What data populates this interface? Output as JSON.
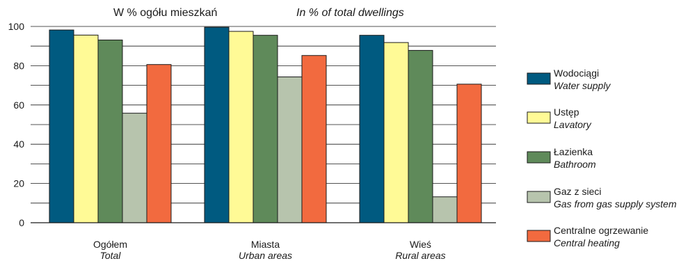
{
  "chart_data": {
    "type": "bar",
    "title": "W % ogółu mieszkań",
    "subtitle": "In % of total dwellings",
    "categories": [
      {
        "pl": "Ogółem",
        "en": "Total"
      },
      {
        "pl": "Miasta",
        "en": "Urban areas"
      },
      {
        "pl": "Wieś",
        "en": "Rural areas"
      }
    ],
    "ylim": [
      0,
      100
    ],
    "yticks": [
      0,
      20,
      40,
      60,
      80,
      100
    ],
    "grid": true,
    "legend_position": "right",
    "series": [
      {
        "name": "Wodociągi",
        "name_en": "Water supply",
        "color": "#005a80",
        "values": [
          98.2,
          99.6,
          95.5
        ]
      },
      {
        "name": "Ustęp",
        "name_en": "Lavatory",
        "color": "#fffa96",
        "values": [
          95.6,
          97.5,
          91.8
        ]
      },
      {
        "name": "Łazienka",
        "name_en": "Bathroom",
        "color": "#5f8a5a",
        "values": [
          93.1,
          95.5,
          87.8
        ]
      },
      {
        "name": "Gaz z sieci",
        "name_en": "Gas from gas supply system",
        "color": "#b7c4ad",
        "values": [
          55.8,
          74.3,
          13.2
        ]
      },
      {
        "name": "Centralne ogrzewanie",
        "name_en": "Central heating",
        "color": "#f26a3f",
        "values": [
          80.6,
          85.2,
          70.6
        ]
      }
    ]
  }
}
